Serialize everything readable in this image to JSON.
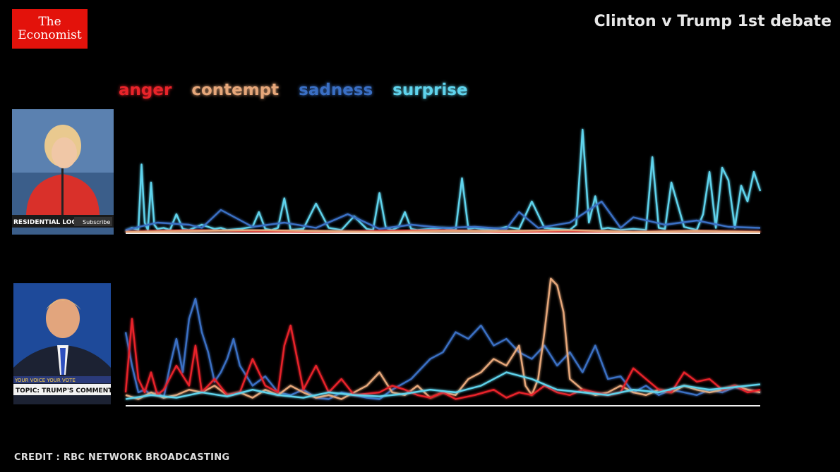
{
  "logo": {
    "line1": "The",
    "line2": "Economist"
  },
  "title": "Clinton v Trump 1st debate",
  "credit": "CREDIT : RBC NETWORK BROADCASTING",
  "colors": {
    "anger": "#e8242a",
    "contempt": "#e6a77a",
    "sadness": "#3a6fc4",
    "surprise": "#5fd3ec",
    "baseline": "#f0f0f0"
  },
  "thumbnails": {
    "clinton": {
      "caption": "RESIDENTIAL LOOK\"",
      "button": "Subscribe"
    },
    "trump": {
      "top": "YOUR VOICE YOUR VOTE",
      "caption": "TOPIC: TRUMP'S COMMENT ON '"
    }
  },
  "chart_data": {
    "type": "line",
    "title": "Clinton v Trump 1st debate",
    "legend": [
      "anger",
      "contempt",
      "sadness",
      "surprise"
    ],
    "legend_placement": "top-left",
    "grid": false,
    "x_range": [
      0,
      100
    ],
    "y_range": [
      0,
      100
    ],
    "panels": [
      {
        "speaker": "Clinton",
        "series": [
          {
            "name": "surprise",
            "x": [
              0,
              1,
              2,
              2.5,
              3,
              3.5,
              4,
              4.5,
              5,
              6,
              7,
              8,
              9,
              10,
              12,
              14,
              15,
              16,
              18,
              20,
              21,
              22,
              23,
              24,
              25,
              26,
              28,
              30,
              32,
              34,
              36,
              38,
              39,
              40,
              41,
              42,
              43,
              44,
              45,
              46,
              48,
              50,
              52,
              53,
              54,
              55,
              56,
              58,
              60,
              62,
              64,
              66,
              68,
              70,
              71,
              72,
              73,
              74,
              75,
              76,
              78,
              80,
              82,
              83,
              84,
              85,
              86,
              88,
              90,
              91,
              92,
              93,
              94,
              95,
              96,
              97,
              98,
              99,
              100
            ],
            "values": [
              2,
              5,
              3,
              65,
              10,
              3,
              48,
              8,
              4,
              5,
              3,
              18,
              4,
              3,
              8,
              4,
              5,
              3,
              4,
              6,
              20,
              4,
              3,
              5,
              33,
              3,
              4,
              28,
              5,
              3,
              16,
              4,
              3,
              38,
              5,
              3,
              6,
              20,
              4,
              3,
              4,
              5,
              3,
              52,
              4,
              5,
              4,
              3,
              6,
              4,
              30,
              5,
              4,
              3,
              8,
              98,
              10,
              35,
              4,
              5,
              3,
              4,
              3,
              72,
              5,
              4,
              48,
              6,
              3,
              18,
              58,
              5,
              62,
              50,
              5,
              45,
              30,
              58,
              40
            ]
          },
          {
            "name": "sadness",
            "x": [
              0,
              5,
              10,
              12,
              15,
              20,
              25,
              30,
              35,
              40,
              45,
              50,
              55,
              60,
              62,
              65,
              70,
              75,
              78,
              80,
              85,
              90,
              95,
              100
            ],
            "values": [
              3,
              10,
              8,
              5,
              22,
              6,
              10,
              5,
              18,
              4,
              8,
              5,
              6,
              4,
              20,
              5,
              10,
              30,
              5,
              15,
              8,
              12,
              6,
              5
            ]
          },
          {
            "name": "anger",
            "x": [
              0,
              10,
              20,
              30,
              40,
              50,
              60,
              70,
              80,
              90,
              100
            ],
            "values": [
              1,
              3,
              2,
              1,
              2,
              3,
              1,
              2,
              1,
              2,
              1
            ]
          },
          {
            "name": "contempt",
            "x": [
              0,
              10,
              20,
              30,
              40,
              50,
              60,
              70,
              80,
              90,
              100
            ],
            "values": [
              1,
              2,
              3,
              2,
              1,
              2,
              2,
              3,
              1,
              2,
              1
            ]
          }
        ]
      },
      {
        "speaker": "Trump",
        "series": [
          {
            "name": "sadness",
            "x": [
              0,
              1,
              2,
              3,
              4,
              5,
              6,
              7,
              8,
              9,
              10,
              11,
              12,
              13,
              14,
              15,
              16,
              17,
              18,
              20,
              22,
              24,
              26,
              28,
              30,
              32,
              34,
              36,
              38,
              40,
              42,
              45,
              48,
              50,
              52,
              54,
              56,
              58,
              60,
              62,
              64,
              66,
              68,
              70,
              72,
              74,
              76,
              78,
              80,
              82,
              84,
              86,
              88,
              90,
              92,
              94,
              96,
              98,
              100
            ],
            "values": [
              55,
              30,
              10,
              12,
              8,
              10,
              6,
              30,
              50,
              25,
              65,
              80,
              55,
              40,
              18,
              25,
              35,
              50,
              30,
              15,
              22,
              10,
              8,
              12,
              6,
              5,
              10,
              8,
              6,
              5,
              12,
              20,
              35,
              40,
              55,
              50,
              60,
              45,
              50,
              40,
              35,
              45,
              30,
              40,
              25,
              45,
              20,
              22,
              10,
              15,
              8,
              12,
              10,
              8,
              12,
              10,
              14,
              12,
              10
            ]
          },
          {
            "name": "contempt",
            "x": [
              0,
              2,
              4,
              6,
              8,
              10,
              12,
              14,
              16,
              18,
              20,
              22,
              24,
              26,
              28,
              30,
              32,
              34,
              36,
              38,
              40,
              42,
              44,
              46,
              48,
              50,
              52,
              54,
              56,
              58,
              60,
              62,
              63,
              64,
              65,
              66,
              67,
              68,
              69,
              70,
              72,
              74,
              76,
              78,
              80,
              82,
              84,
              86,
              88,
              90,
              92,
              94,
              96,
              98,
              100
            ],
            "values": [
              8,
              5,
              10,
              6,
              8,
              12,
              10,
              15,
              8,
              10,
              6,
              12,
              8,
              15,
              10,
              6,
              8,
              5,
              10,
              15,
              25,
              10,
              8,
              15,
              6,
              10,
              8,
              20,
              25,
              35,
              30,
              45,
              15,
              8,
              20,
              55,
              95,
              90,
              70,
              20,
              12,
              8,
              10,
              15,
              10,
              8,
              12,
              10,
              15,
              12,
              10,
              12,
              15,
              12,
              10
            ]
          },
          {
            "name": "anger",
            "x": [
              0,
              1,
              2,
              3,
              4,
              5,
              6,
              8,
              10,
              11,
              12,
              14,
              16,
              18,
              20,
              22,
              24,
              25,
              26,
              28,
              30,
              32,
              34,
              36,
              40,
              42,
              44,
              46,
              48,
              50,
              52,
              55,
              58,
              60,
              62,
              64,
              66,
              68,
              70,
              72,
              74,
              76,
              78,
              80,
              82,
              84,
              86,
              88,
              90,
              92,
              94,
              96,
              98,
              100
            ],
            "values": [
              10,
              65,
              20,
              10,
              25,
              8,
              12,
              30,
              15,
              45,
              10,
              20,
              8,
              10,
              35,
              15,
              10,
              45,
              60,
              12,
              30,
              10,
              20,
              8,
              10,
              15,
              12,
              8,
              6,
              10,
              5,
              8,
              12,
              6,
              10,
              8,
              15,
              10,
              8,
              12,
              10,
              8,
              10,
              28,
              20,
              12,
              10,
              25,
              18,
              20,
              12,
              15,
              10,
              12
            ]
          },
          {
            "name": "surprise",
            "x": [
              0,
              4,
              8,
              12,
              16,
              20,
              24,
              28,
              32,
              36,
              40,
              44,
              48,
              52,
              56,
              60,
              64,
              68,
              72,
              76,
              80,
              84,
              88,
              92,
              96,
              100
            ],
            "values": [
              5,
              8,
              6,
              10,
              7,
              12,
              8,
              6,
              10,
              8,
              7,
              9,
              12,
              10,
              15,
              25,
              20,
              12,
              10,
              8,
              12,
              10,
              15,
              12,
              14,
              16
            ]
          }
        ]
      }
    ]
  }
}
